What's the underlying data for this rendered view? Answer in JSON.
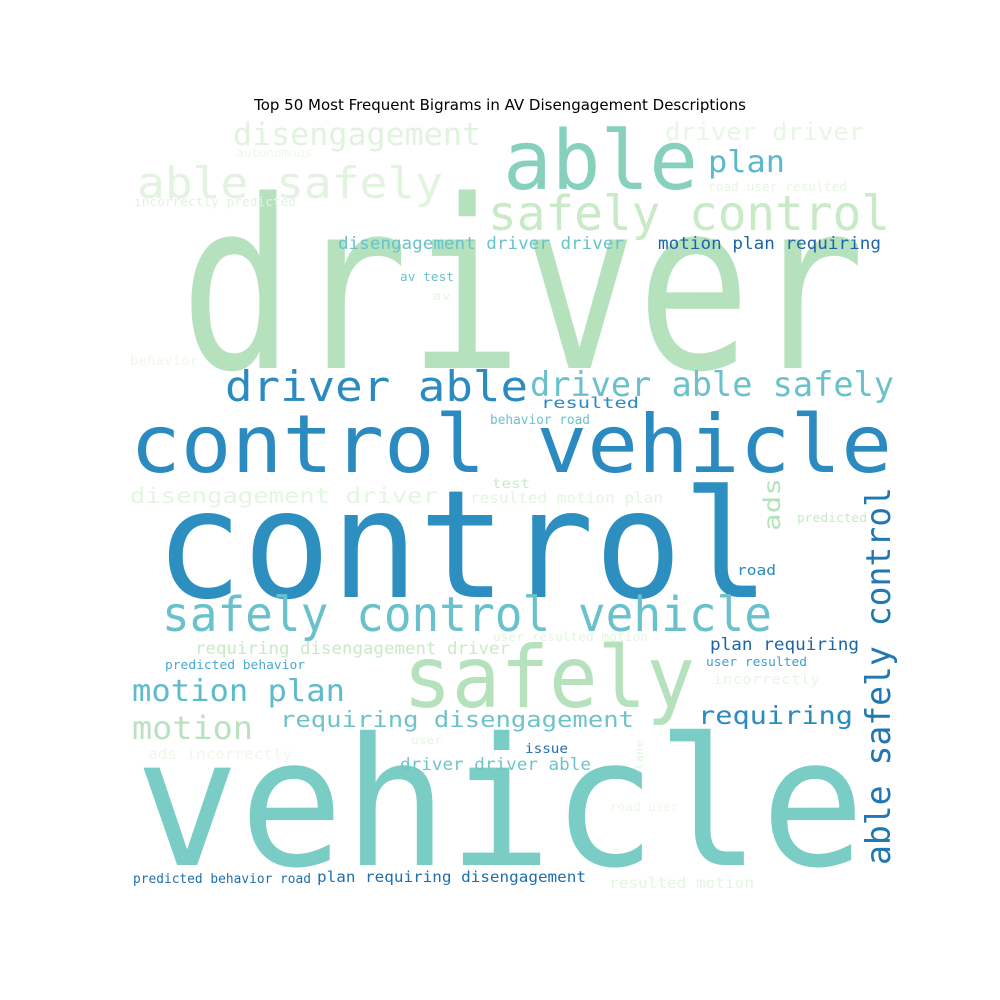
{
  "title": "Top 50 Most Frequent Bigrams in AV Disengagement Descriptions",
  "words": [
    {
      "text": "driver",
      "color": "#b5e2bd"
    },
    {
      "text": "control",
      "color": "#2d8fc0"
    },
    {
      "text": "vehicle",
      "color": "#7acdc4"
    },
    {
      "text": "control vehicle",
      "color": "#2b8ac0"
    },
    {
      "text": "safely",
      "color": "#b5e2bd"
    },
    {
      "text": "able",
      "color": "#86d0bc"
    },
    {
      "text": "safely control vehicle",
      "color": "#68c1cb"
    },
    {
      "text": "safely control",
      "color": "#c8eac7"
    },
    {
      "text": "able safely",
      "color": "#e2f3df"
    },
    {
      "text": "driver able",
      "color": "#2b8ac0"
    },
    {
      "text": "driver able safely",
      "color": "#6bc1cb"
    },
    {
      "text": "able safely control",
      "color": "#2078b2"
    },
    {
      "text": "disengagement",
      "color": "#e1f3de"
    },
    {
      "text": "driver driver",
      "color": "#e8f6e4"
    },
    {
      "text": "plan",
      "color": "#5ab9ce"
    },
    {
      "text": "motion plan",
      "color": "#5ebbcd"
    },
    {
      "text": "motion",
      "color": "#b9e3c0"
    },
    {
      "text": "requiring disengagement",
      "color": "#6fc4c9"
    },
    {
      "text": "requiring",
      "color": "#2b8ac0"
    },
    {
      "text": "disengagement driver",
      "color": "#e4f5e1"
    },
    {
      "text": "disengagement driver driver",
      "color": "#68c1cb"
    },
    {
      "text": "motion plan requiring",
      "color": "#1c64a8"
    },
    {
      "text": "requiring disengagement driver",
      "color": "#c8eac7"
    },
    {
      "text": "plan requiring",
      "color": "#1c64a8"
    },
    {
      "text": "ads",
      "color": "#b5e2bd"
    },
    {
      "text": "driver driver able",
      "color": "#6fc4c9"
    },
    {
      "text": "plan requiring disengagement",
      "color": "#1f6fae"
    },
    {
      "text": "predicted behavior road",
      "color": "#1f6fae"
    },
    {
      "text": "resulted motion",
      "color": "#e4f5e1"
    },
    {
      "text": "resulted",
      "color": "#2b8ac0"
    },
    {
      "text": "behavior road",
      "color": "#6bc1cb"
    },
    {
      "text": "resulted motion plan",
      "color": "#e4f5e1"
    },
    {
      "text": "test",
      "color": "#c8eac7"
    },
    {
      "text": "road",
      "color": "#2b8ac0"
    },
    {
      "text": "predicted",
      "color": "#c8eac7"
    },
    {
      "text": "user resulted motion",
      "color": "#e4f5e1"
    },
    {
      "text": "predicted behavior",
      "color": "#4aa9d0"
    },
    {
      "text": "user resulted",
      "color": "#3f9fd0"
    },
    {
      "text": "incorrectly",
      "color": "#e8f6e4"
    },
    {
      "text": "issue",
      "color": "#1f6fae"
    },
    {
      "text": "user",
      "color": "#e4f5e1"
    },
    {
      "text": "lane",
      "color": "#e4f5e1"
    },
    {
      "text": "road user",
      "color": "#eef8ea"
    },
    {
      "text": "ads incorrectly",
      "color": "#eef8ea"
    },
    {
      "text": "av test",
      "color": "#6bc1cb"
    },
    {
      "text": "av",
      "color": "#e4f5e1"
    },
    {
      "text": "behavior",
      "color": "#eef8ea"
    },
    {
      "text": "autonomous",
      "color": "#eef8ea"
    },
    {
      "text": "incorrectly predicted",
      "color": "#e1f3de"
    },
    {
      "text": "road user resulted",
      "color": "#e8f6e4"
    }
  ]
}
